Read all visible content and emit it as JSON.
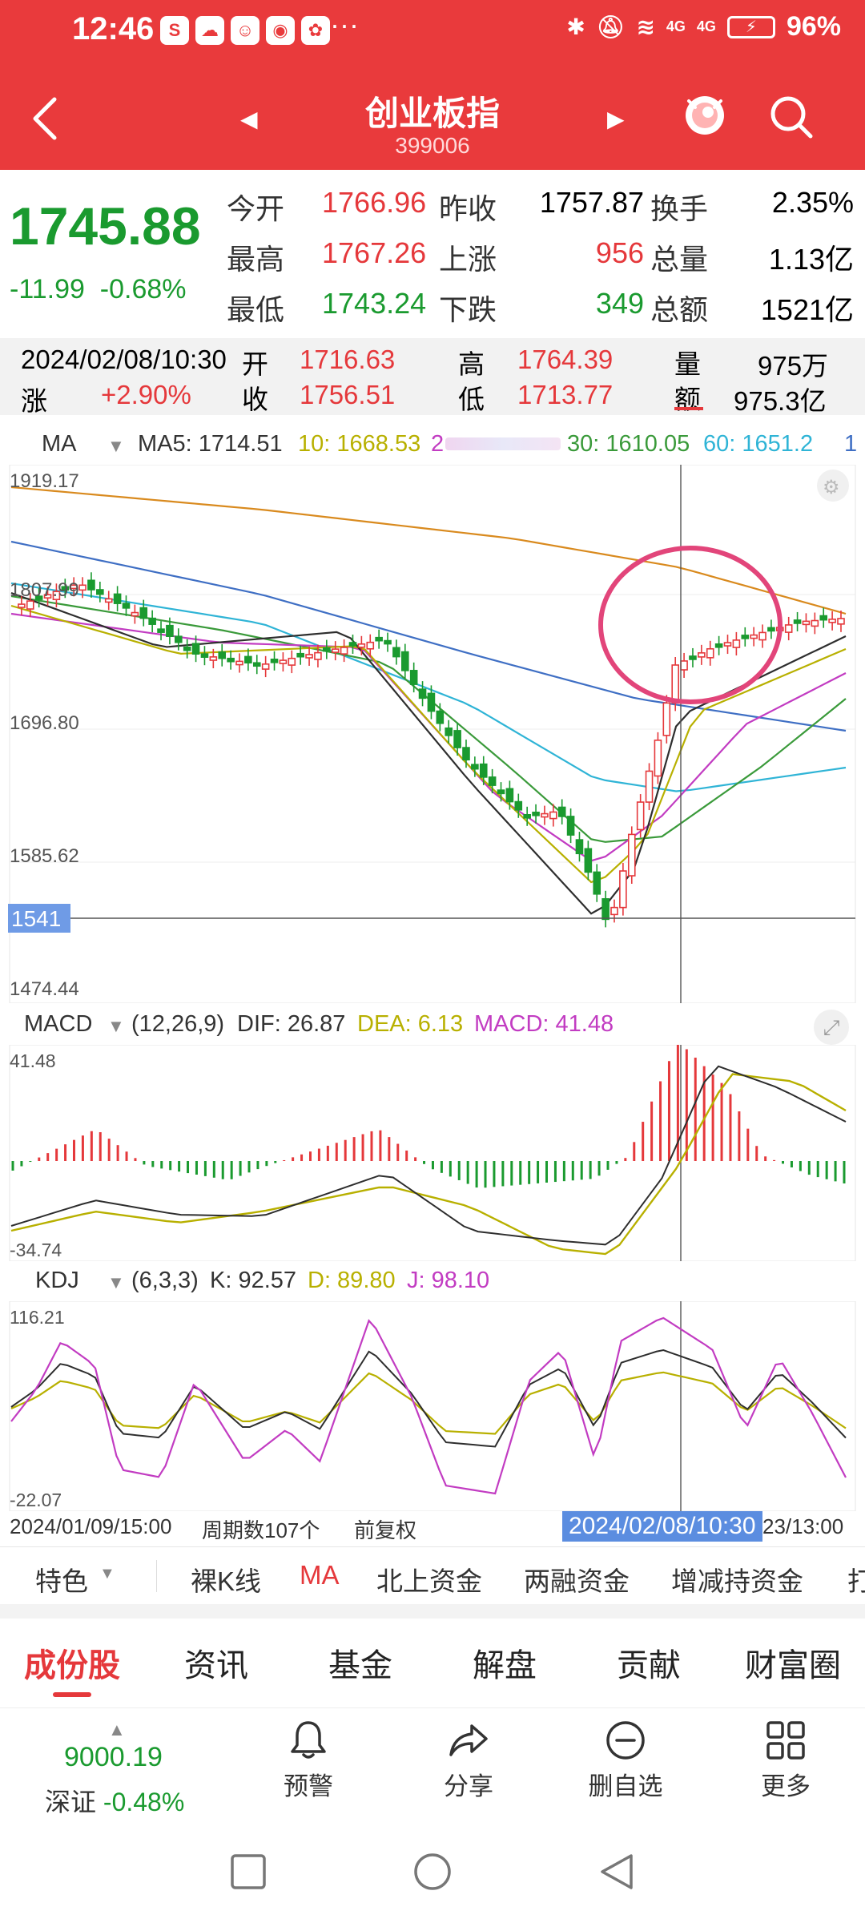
{
  "status_bar": {
    "time": "12:46",
    "app_icons": [
      "app-icon-1",
      "app-icon-2",
      "app-icon-3",
      "app-icon-4",
      "app-icon-5"
    ],
    "more": "···",
    "network_1": "4G",
    "network_2": "4G",
    "battery": "96%"
  },
  "nav": {
    "title": "创业板指",
    "code": "399006"
  },
  "quote": {
    "last": "1745.88",
    "change": "-11.99",
    "change_pct": "-0.68%",
    "open_label": "今开",
    "open": "1766.96",
    "prev_close_label": "昨收",
    "prev_close": "1757.87",
    "turnover_label": "换手",
    "turnover": "2.35%",
    "high_label": "最高",
    "high": "1767.26",
    "up_label": "上涨",
    "up": "956",
    "volume_label": "总量",
    "volume": "1.13亿",
    "low_label": "最低",
    "low": "1743.24",
    "down_label": "下跌",
    "down": "349",
    "amount_label": "总额",
    "amount": "1521亿"
  },
  "info_bar": {
    "datetime": "2024/02/08/10:30",
    "open_label": "开",
    "open": "1716.63",
    "high_label": "高",
    "high": "1764.39",
    "vol_label": "量",
    "vol": "975万",
    "chg_label": "涨",
    "chg": "+2.90%",
    "close_label": "收",
    "close": "1756.51",
    "low_label": "低",
    "low": "1713.77",
    "amt_label": "额",
    "amt": "975.3亿"
  },
  "ma_legend": {
    "name": "MA",
    "ma5": "MA5: 1714.51",
    "ma10": "10: 1668.53",
    "ma20": "2",
    "ma30": "30: 1610.05",
    "ma60": "60: 1651.2",
    "ma_more": "1"
  },
  "macd_legend": {
    "name": "MACD",
    "params": "(12,26,9)",
    "dif": "DIF: 26.87",
    "dea": "DEA: 6.13",
    "macd": "MACD: 41.48"
  },
  "kdj_legend": {
    "name": "KDJ",
    "params": "(6,3,3)",
    "k": "K: 92.57",
    "d": "D: 89.80",
    "j": "J: 98.10"
  },
  "time_row": {
    "start": "2024/01/09/15:00",
    "periods": "周期数107个",
    "adjust": "前复权",
    "cursor": "2024/02/08/10:30",
    "end": "23/13:00"
  },
  "indicator_tabs": [
    "特色",
    "裸K线",
    "MA",
    "北上资金",
    "两融资金",
    "增减持资金",
    "打"
  ],
  "content_tabs": [
    "成份股",
    "资讯",
    "基金",
    "解盘",
    "贡献",
    "财富圈"
  ],
  "toolbar": {
    "sz_value": "9000.19",
    "sz_name": "深证",
    "sz_pct": "-0.48%",
    "alert": "预警",
    "share": "分享",
    "remove": "删自选",
    "more": "更多"
  },
  "colors": {
    "up": "#e5383b",
    "down": "#1a9a2f",
    "header": "#e93a3c",
    "ma5": "#2e2e2e",
    "ma10": "#b8b000",
    "ma20": "#c23cc2",
    "ma30": "#3a9a3a",
    "ma60": "#2fb4d6",
    "ma120": "#3f6fc4",
    "ma250": "#d98a1e"
  },
  "chart_data": [
    {
      "type": "candlestick",
      "title": "",
      "y_ticks": [
        "1919.17",
        "1807.99",
        "1696.80",
        "1585.62",
        "1474.44"
      ],
      "y_range": [
        1474.44,
        1919.17
      ],
      "crosshair_value": "1541",
      "series": [
        {
          "name": "MA5",
          "values": [
            1714.51
          ]
        },
        {
          "name": "10",
          "values": [
            1668.53
          ]
        },
        {
          "name": "30",
          "values": [
            1610.05
          ]
        },
        {
          "name": "60",
          "values": [
            1651.2
          ]
        }
      ]
    },
    {
      "type": "bar",
      "title": "MACD",
      "y_ticks": [
        "41.48",
        "-34.74"
      ],
      "y_range": [
        -34.74,
        41.48
      ],
      "series": [
        {
          "name": "DIF",
          "values": [
            26.87
          ]
        },
        {
          "name": "DEA",
          "values": [
            6.13
          ]
        },
        {
          "name": "MACD",
          "values": [
            41.48
          ]
        }
      ]
    },
    {
      "type": "line",
      "title": "KDJ",
      "y_ticks": [
        "116.21",
        "-22.07"
      ],
      "y_range": [
        -22.07,
        116.21
      ],
      "series": [
        {
          "name": "K",
          "values": [
            92.57
          ]
        },
        {
          "name": "D",
          "values": [
            89.8
          ]
        },
        {
          "name": "J",
          "values": [
            98.1
          ]
        }
      ]
    }
  ]
}
